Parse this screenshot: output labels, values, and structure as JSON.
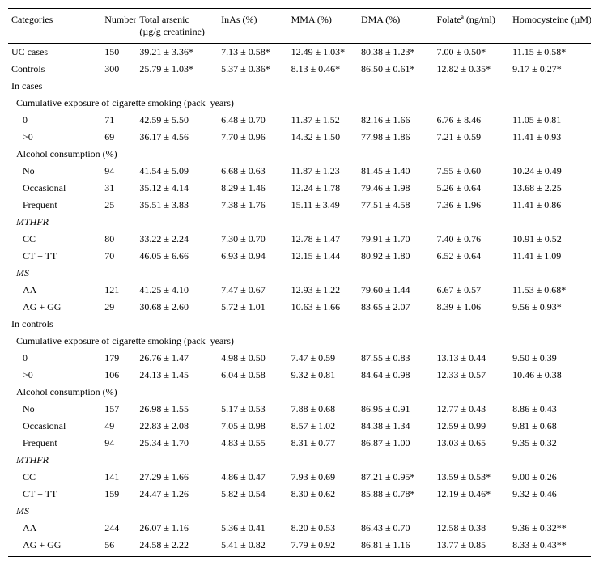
{
  "headers": {
    "categories": "Categories",
    "number": "Number",
    "total_arsenic": "Total arsenic",
    "total_arsenic_sub": "(µg/g creatinine)",
    "inas": "InAs (%)",
    "mma": "MMA (%)",
    "dma": "DMA (%)",
    "folate": "Folateª (ng/ml)",
    "homocysteine": "Homocysteine (µM)"
  },
  "sections": {
    "uc_cases": {
      "label": "UC cases",
      "n": "150",
      "tot": "39.21 ± 3.36*",
      "inas": "7.13 ± 0.58*",
      "mma": "12.49 ± 1.03*",
      "dma": "80.38 ± 1.23*",
      "fol": "7.00 ± 0.50*",
      "homo": "11.15 ± 0.58*"
    },
    "controls": {
      "label": "Controls",
      "n": "300",
      "tot": "25.79 ± 1.03*",
      "inas": "5.37 ± 0.36*",
      "mma": "8.13 ± 0.46*",
      "dma": "86.50 ± 0.61*",
      "fol": "12.82 ± 0.35*",
      "homo": "9.17 ± 0.27*"
    },
    "in_cases": "In cases",
    "in_controls": "In controls",
    "smoking_label": "Cumulative exposure of cigarette smoking (pack–years)",
    "alcohol_label": "Alcohol consumption (%)",
    "mthfr_label": "MTHFR",
    "ms_label": "MS"
  },
  "cases": {
    "smoking": [
      {
        "label": "0",
        "n": "71",
        "tot": "42.59 ± 5.50",
        "inas": "6.48 ± 0.70",
        "mma": "11.37 ± 1.52",
        "dma": "82.16 ± 1.66",
        "fol": "6.76 ± 8.46",
        "homo": "11.05 ± 0.81"
      },
      {
        "label": ">0",
        "n": "69",
        "tot": "36.17 ± 4.56",
        "inas": "7.70 ± 0.96",
        "mma": "14.32 ± 1.50",
        "dma": "77.98 ± 1.86",
        "fol": "7.21 ± 0.59",
        "homo": "11.41 ± 0.93"
      }
    ],
    "alcohol": [
      {
        "label": "No",
        "n": "94",
        "tot": "41.54 ± 5.09",
        "inas": "6.68 ± 0.63",
        "mma": "11.87 ± 1.23",
        "dma": "81.45 ± 1.40",
        "fol": "7.55 ± 0.60",
        "homo": "10.24 ± 0.49"
      },
      {
        "label": "Occasional",
        "n": "31",
        "tot": "35.12 ± 4.14",
        "inas": "8.29 ± 1.46",
        "mma": "12.24 ± 1.78",
        "dma": "79.46 ± 1.98",
        "fol": "5.26 ± 0.64",
        "homo": "13.68 ± 2.25"
      },
      {
        "label": "Frequent",
        "n": "25",
        "tot": "35.51 ± 3.83",
        "inas": "7.38 ± 1.76",
        "mma": "15.11 ± 3.49",
        "dma": "77.51 ± 4.58",
        "fol": "7.36 ± 1.96",
        "homo": "11.41 ± 0.86"
      }
    ],
    "mthfr": [
      {
        "label": "CC",
        "n": "80",
        "tot": "33.22 ± 2.24",
        "inas": "7.30 ± 0.70",
        "mma": "12.78 ± 1.47",
        "dma": "79.91 ± 1.70",
        "fol": "7.40 ± 0.76",
        "homo": "10.91 ± 0.52"
      },
      {
        "label": "CT + TT",
        "n": "70",
        "tot": "46.05 ± 6.66",
        "inas": "6.93 ± 0.94",
        "mma": "12.15 ± 1.44",
        "dma": "80.92 ± 1.80",
        "fol": "6.52 ± 0.64",
        "homo": "11.41 ± 1.09"
      }
    ],
    "ms": [
      {
        "label": "AA",
        "n": "121",
        "tot": "41.25 ± 4.10",
        "inas": "7.47 ± 0.67",
        "mma": "12.93 ± 1.22",
        "dma": "79.60 ± 1.44",
        "fol": "6.67 ± 0.57",
        "homo": "11.53 ± 0.68*"
      },
      {
        "label": "AG + GG",
        "n": "29",
        "tot": "30.68 ± 2.60",
        "inas": "5.72 ± 1.01",
        "mma": "10.63 ± 1.66",
        "dma": "83.65 ± 2.07",
        "fol": "8.39 ± 1.06",
        "homo": "9.56 ± 0.93*"
      }
    ]
  },
  "controls_rows": {
    "smoking": [
      {
        "label": "0",
        "n": "179",
        "tot": "26.76 ± 1.47",
        "inas": "4.98 ± 0.50",
        "mma": "7.47 ± 0.59",
        "dma": "87.55 ± 0.83",
        "fol": "13.13 ± 0.44",
        "homo": "9.50 ± 0.39"
      },
      {
        "label": ">0",
        "n": "106",
        "tot": "24.13 ± 1.45",
        "inas": "6.04 ± 0.58",
        "mma": "9.32 ± 0.81",
        "dma": "84.64 ± 0.98",
        "fol": "12.33 ± 0.57",
        "homo": "10.46 ± 0.38"
      }
    ],
    "alcohol": [
      {
        "label": "No",
        "n": "157",
        "tot": "26.98 ± 1.55",
        "inas": "5.17 ± 0.53",
        "mma": "7.88 ± 0.68",
        "dma": "86.95 ± 0.91",
        "fol": "12.77 ± 0.43",
        "homo": "8.86 ± 0.43"
      },
      {
        "label": "Occasional",
        "n": "49",
        "tot": "22.83 ± 2.08",
        "inas": "7.05 ± 0.98",
        "mma": "8.57 ± 1.02",
        "dma": "84.38 ± 1.34",
        "fol": "12.59 ± 0.99",
        "homo": "9.81 ± 0.68"
      },
      {
        "label": "Frequent",
        "n": "94",
        "tot": "25.34 ± 1.70",
        "inas": "4.83 ± 0.55",
        "mma": "8.31 ± 0.77",
        "dma": "86.87 ± 1.00",
        "fol": "13.03 ± 0.65",
        "homo": "9.35 ± 0.32"
      }
    ],
    "mthfr": [
      {
        "label": "CC",
        "n": "141",
        "tot": "27.29 ± 1.66",
        "inas": "4.86 ± 0.47",
        "mma": "7.93 ± 0.69",
        "dma": "87.21 ± 0.95*",
        "fol": "13.59 ± 0.53*",
        "homo": "9.00 ± 0.26"
      },
      {
        "label": "CT + TT",
        "n": "159",
        "tot": "24.47 ± 1.26",
        "inas": "5.82 ± 0.54",
        "mma": "8.30 ± 0.62",
        "dma": "85.88 ± 0.78*",
        "fol": "12.19 ± 0.46*",
        "homo": "9.32 ± 0.46"
      }
    ],
    "ms": [
      {
        "label": "AA",
        "n": "244",
        "tot": "26.07 ± 1.16",
        "inas": "5.36 ± 0.41",
        "mma": "8.20 ± 0.53",
        "dma": "86.43 ± 0.70",
        "fol": "12.58 ± 0.38",
        "homo": "9.36 ± 0.32**"
      },
      {
        "label": "AG + GG",
        "n": "56",
        "tot": "24.58 ± 2.22",
        "inas": "5.41 ± 0.82",
        "mma": "7.79 ± 0.92",
        "dma": "86.81 ± 1.16",
        "fol": "13.77 ± 0.85",
        "homo": "8.33 ± 0.43**"
      }
    ]
  }
}
